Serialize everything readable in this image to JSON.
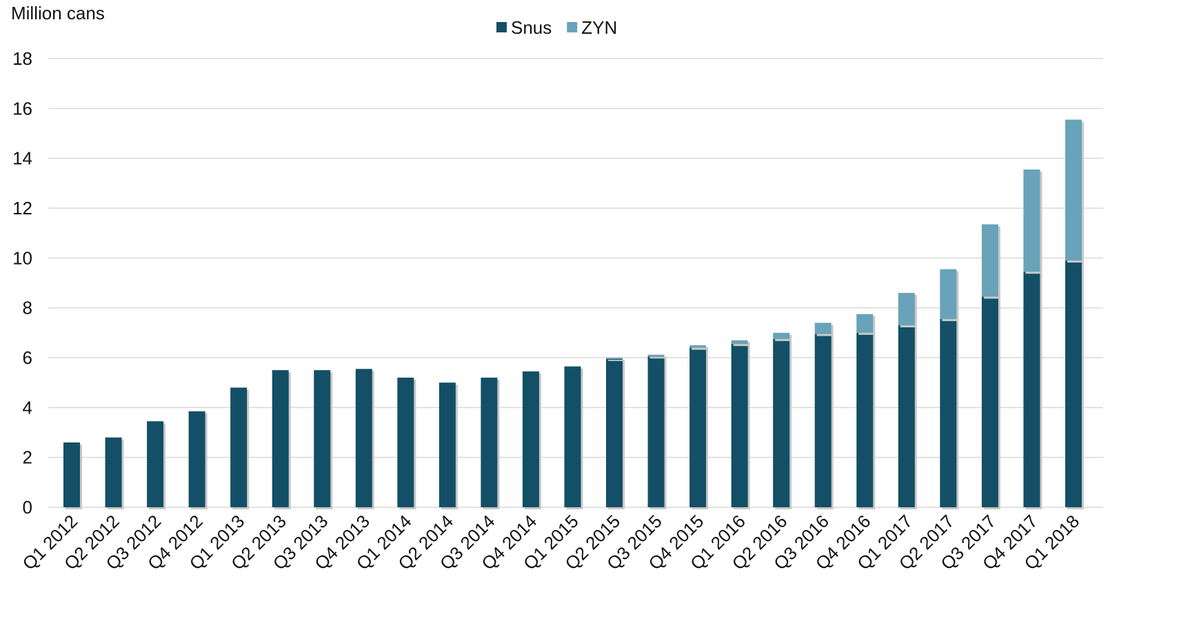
{
  "chart_data": {
    "type": "bar",
    "stacked": true,
    "y_label": "Million cans",
    "categories": [
      "Q1 2012",
      "Q2 2012",
      "Q3 2012",
      "Q4 2012",
      "Q1 2013",
      "Q2 2013",
      "Q3 2013",
      "Q4 2013",
      "Q1 2014",
      "Q2 2014",
      "Q3 2014",
      "Q4 2014",
      "Q1 2015",
      "Q2 2015",
      "Q3 2015",
      "Q4 2015",
      "Q1 2016",
      "Q2 2016",
      "Q3 2016",
      "Q4 2016",
      "Q1 2017",
      "Q2 2017",
      "Q3 2017",
      "Q4 2017",
      "Q1 2018"
    ],
    "series": [
      {
        "name": "Snus",
        "color": "#134f66",
        "values": [
          2.6,
          2.8,
          3.45,
          3.85,
          4.8,
          5.5,
          5.5,
          5.55,
          5.2,
          5.0,
          5.2,
          5.45,
          5.65,
          5.95,
          6.05,
          6.4,
          6.55,
          6.75,
          6.95,
          7.0,
          7.3,
          7.55,
          8.45,
          9.45,
          9.9
        ]
      },
      {
        "name": "ZYN",
        "color": "#68a3b9",
        "values": [
          0,
          0,
          0,
          0,
          0,
          0,
          0,
          0,
          0,
          0,
          0,
          0,
          0,
          0.05,
          0.07,
          0.1,
          0.15,
          0.25,
          0.45,
          0.75,
          1.3,
          2.0,
          2.9,
          4.1,
          5.65
        ]
      }
    ],
    "ylim": [
      0,
      18
    ],
    "yticks": [
      0,
      2,
      4,
      6,
      8,
      10,
      12,
      14,
      16,
      18
    ],
    "grid": true,
    "legend": "top"
  }
}
